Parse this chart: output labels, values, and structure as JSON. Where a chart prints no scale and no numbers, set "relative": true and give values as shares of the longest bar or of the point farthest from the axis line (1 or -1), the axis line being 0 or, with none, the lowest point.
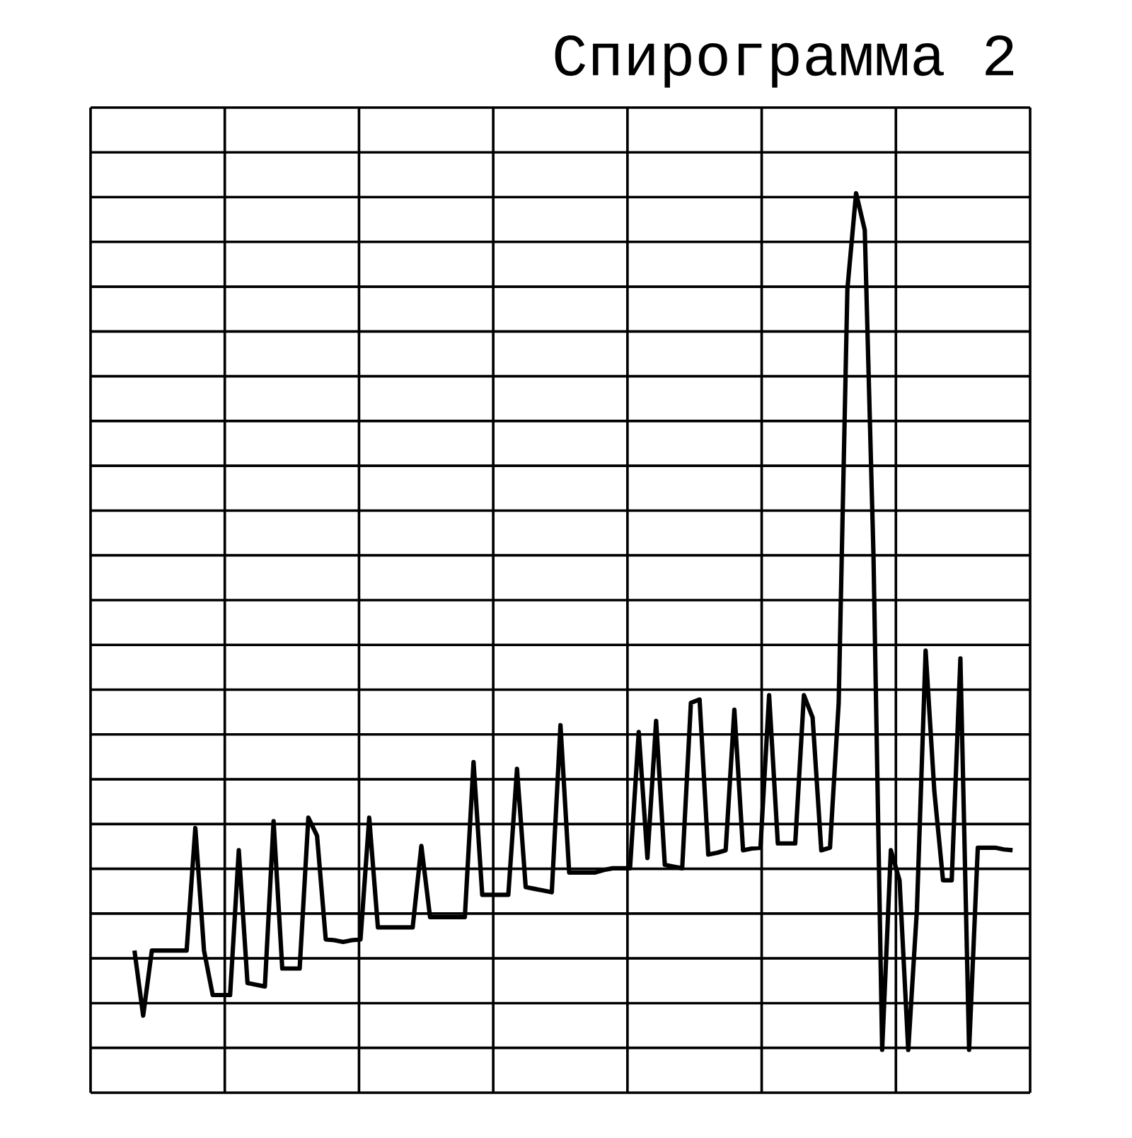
{
  "chart_data": {
    "type": "line",
    "title": "Спирограмма 2",
    "relative": true,
    "grid": true,
    "tick_labels": false,
    "marker": "none",
    "line_style": "solid",
    "categories": [
      null,
      null,
      null,
      null,
      null,
      null,
      null,
      null,
      null,
      null,
      null,
      null,
      null,
      null,
      null,
      null,
      null,
      null,
      null,
      null,
      null,
      null,
      null,
      null,
      null,
      null,
      null,
      null,
      null,
      null,
      null,
      null,
      null,
      null,
      null,
      null,
      null,
      null,
      null,
      null,
      null,
      null,
      null,
      null,
      null,
      null,
      null,
      null,
      null,
      null,
      null,
      null,
      null,
      null,
      null,
      null,
      null,
      null,
      null,
      null,
      null,
      null,
      null,
      null,
      null,
      null,
      null,
      null,
      null,
      null,
      null,
      null,
      null,
      null,
      null,
      null,
      null,
      null,
      null,
      null,
      null,
      null,
      null,
      null,
      null,
      null,
      null,
      null,
      null,
      null,
      null,
      null,
      null,
      null,
      null,
      null,
      null,
      null,
      null,
      null,
      null,
      null
    ],
    "series": [
      {
        "color": "#000000",
        "values": [
          0.116,
          0.04,
          0.116,
          0.116,
          0.116,
          0.116,
          0.116,
          0.259,
          0.116,
          0.064,
          0.064,
          0.064,
          0.233,
          0.078,
          0.076,
          0.074,
          0.267,
          0.095,
          0.095,
          0.095,
          0.271,
          0.25,
          0.129,
          0.128,
          0.126,
          0.128,
          0.129,
          0.271,
          0.143,
          0.143,
          0.143,
          0.143,
          0.143,
          0.238,
          0.155,
          0.155,
          0.155,
          0.155,
          0.155,
          0.336,
          0.181,
          0.181,
          0.181,
          0.181,
          0.328,
          0.19,
          0.188,
          0.186,
          0.184,
          0.379,
          0.207,
          0.207,
          0.207,
          0.207,
          0.21,
          0.212,
          0.212,
          0.212,
          0.371,
          0.224,
          0.384,
          0.216,
          0.214,
          0.212,
          0.405,
          0.409,
          0.228,
          0.23,
          0.233,
          0.397,
          0.233,
          0.235,
          0.236,
          0.414,
          0.241,
          0.241,
          0.241,
          0.414,
          0.388,
          0.233,
          0.236,
          0.405,
          0.888,
          1,
          0.957,
          0.578,
          0,
          0.233,
          0.198,
          0,
          0.164,
          0.466,
          0.302,
          0.198,
          0.198,
          0.457,
          0,
          0.236,
          0.236,
          0.236,
          0.234,
          0.233
        ]
      }
    ]
  }
}
